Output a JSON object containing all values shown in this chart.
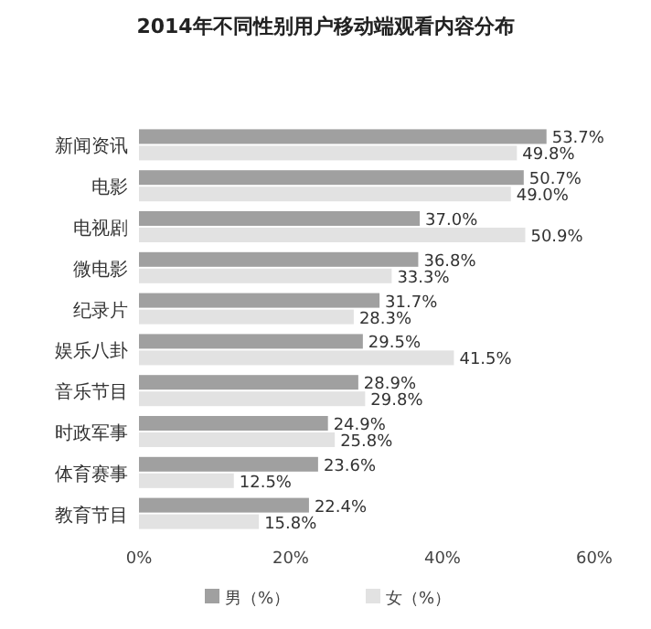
{
  "chart_data": {
    "type": "bar",
    "orientation": "horizontal",
    "title": "2014年不同性别用户移动端观看内容分布",
    "categories": [
      "新闻资讯",
      "电影",
      "电视剧",
      "微电影",
      "纪录片",
      "娱乐八卦",
      "音乐节目",
      "时政军事",
      "体育赛事",
      "教育节目"
    ],
    "series": [
      {
        "name": "男（%）",
        "color": "#a0a0a0",
        "values": [
          53.7,
          50.7,
          37.0,
          36.8,
          31.7,
          29.5,
          28.9,
          24.9,
          23.6,
          22.4
        ],
        "value_labels": [
          "53.7%",
          "50.7%",
          "37.0%",
          "36.8%",
          "31.7%",
          "29.5%",
          "28.9%",
          "24.9%",
          "23.6%",
          "22.4%"
        ]
      },
      {
        "name": "女（%）",
        "color": "#e2e2e2",
        "values": [
          49.8,
          49.0,
          50.9,
          33.3,
          28.3,
          41.5,
          29.8,
          25.8,
          12.5,
          15.8
        ],
        "value_labels": [
          "49.8%",
          "49.0%",
          "50.9%",
          "33.3%",
          "28.3%",
          "41.5%",
          "29.8%",
          "25.8%",
          "12.5%",
          "15.8%"
        ]
      }
    ],
    "xlim": [
      0,
      60
    ],
    "xticks": [
      {
        "value": 0,
        "label": "0%"
      },
      {
        "value": 20,
        "label": "20%"
      },
      {
        "value": 40,
        "label": "40%"
      },
      {
        "value": 60,
        "label": "60%"
      }
    ],
    "legend": "bottom"
  }
}
